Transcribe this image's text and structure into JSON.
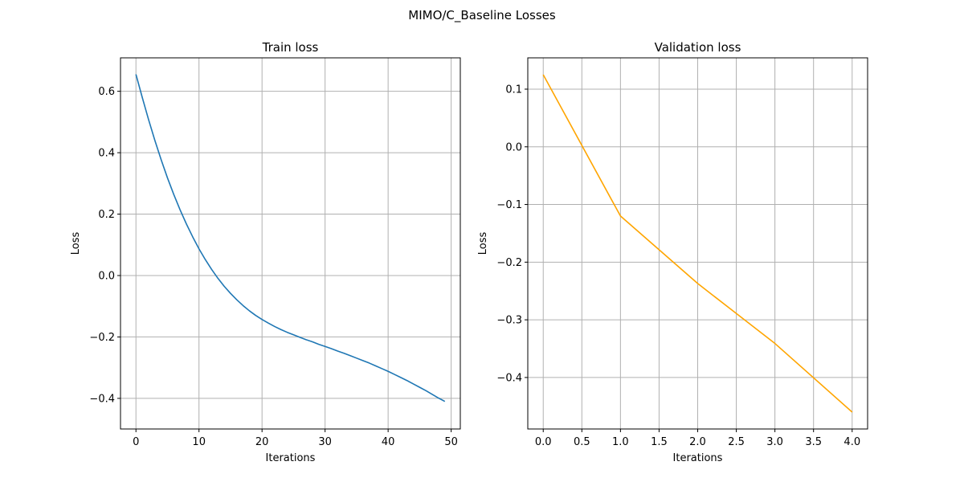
{
  "figure": {
    "suptitle": "MIMO/C_Baseline Losses"
  },
  "chart_data": [
    {
      "type": "line",
      "title": "Train loss",
      "xlabel": "Iterations",
      "ylabel": "Loss",
      "xlim": [
        -2.45,
        51.45
      ],
      "ylim": [
        -0.4997,
        0.7089
      ],
      "xticks": [
        0,
        10,
        20,
        30,
        40,
        50
      ],
      "xtick_labels": [
        "0",
        "10",
        "20",
        "30",
        "40",
        "50"
      ],
      "yticks": [
        -0.4,
        -0.2,
        0.0,
        0.2,
        0.4,
        0.6
      ],
      "ytick_labels": [
        "−0.4",
        "−0.2",
        "0.0",
        "0.2",
        "0.4",
        "0.6"
      ],
      "grid": true,
      "series": [
        {
          "color": "#1f77b4",
          "x": [
            0,
            1,
            2,
            3,
            4,
            5,
            6,
            7,
            8,
            9,
            10,
            11,
            12,
            13,
            14,
            15,
            16,
            17,
            18,
            19,
            20,
            21,
            22,
            23,
            24,
            25,
            26,
            27,
            28,
            29,
            30,
            31,
            32,
            33,
            34,
            35,
            36,
            37,
            38,
            39,
            40,
            41,
            42,
            43,
            44,
            45,
            46,
            47,
            48,
            49
          ],
          "y": [
            0.655,
            0.58,
            0.508,
            0.44,
            0.377,
            0.318,
            0.264,
            0.214,
            0.168,
            0.126,
            0.087,
            0.052,
            0.02,
            -0.009,
            -0.035,
            -0.058,
            -0.079,
            -0.098,
            -0.115,
            -0.13,
            -0.143,
            -0.155,
            -0.166,
            -0.176,
            -0.185,
            -0.193,
            -0.201,
            -0.209,
            -0.216,
            -0.224,
            -0.231,
            -0.238,
            -0.246,
            -0.253,
            -0.261,
            -0.269,
            -0.277,
            -0.285,
            -0.294,
            -0.303,
            -0.312,
            -0.322,
            -0.332,
            -0.342,
            -0.353,
            -0.364,
            -0.375,
            -0.387,
            -0.399,
            -0.41
          ]
        }
      ]
    },
    {
      "type": "line",
      "title": "Validation loss",
      "xlabel": "Iterations",
      "ylabel": "Loss",
      "xlim": [
        -0.2,
        4.2
      ],
      "ylim": [
        -0.4893,
        0.1543
      ],
      "xticks": [
        0,
        0.5,
        1,
        1.5,
        2,
        2.5,
        3,
        3.5,
        4
      ],
      "xtick_labels": [
        "0.0",
        "0.5",
        "1.0",
        "1.5",
        "2.0",
        "2.5",
        "3.0",
        "3.5",
        "4.0"
      ],
      "yticks": [
        -0.4,
        -0.3,
        -0.2,
        -0.1,
        0.0,
        0.1
      ],
      "ytick_labels": [
        "−0.4",
        "−0.3",
        "−0.2",
        "−0.1",
        "0.0",
        "0.1"
      ],
      "grid": true,
      "series": [
        {
          "color": "#ffa500",
          "x": [
            0,
            1,
            2,
            3,
            4
          ],
          "y": [
            0.125,
            -0.12,
            -0.237,
            -0.341,
            -0.46
          ]
        }
      ]
    }
  ]
}
